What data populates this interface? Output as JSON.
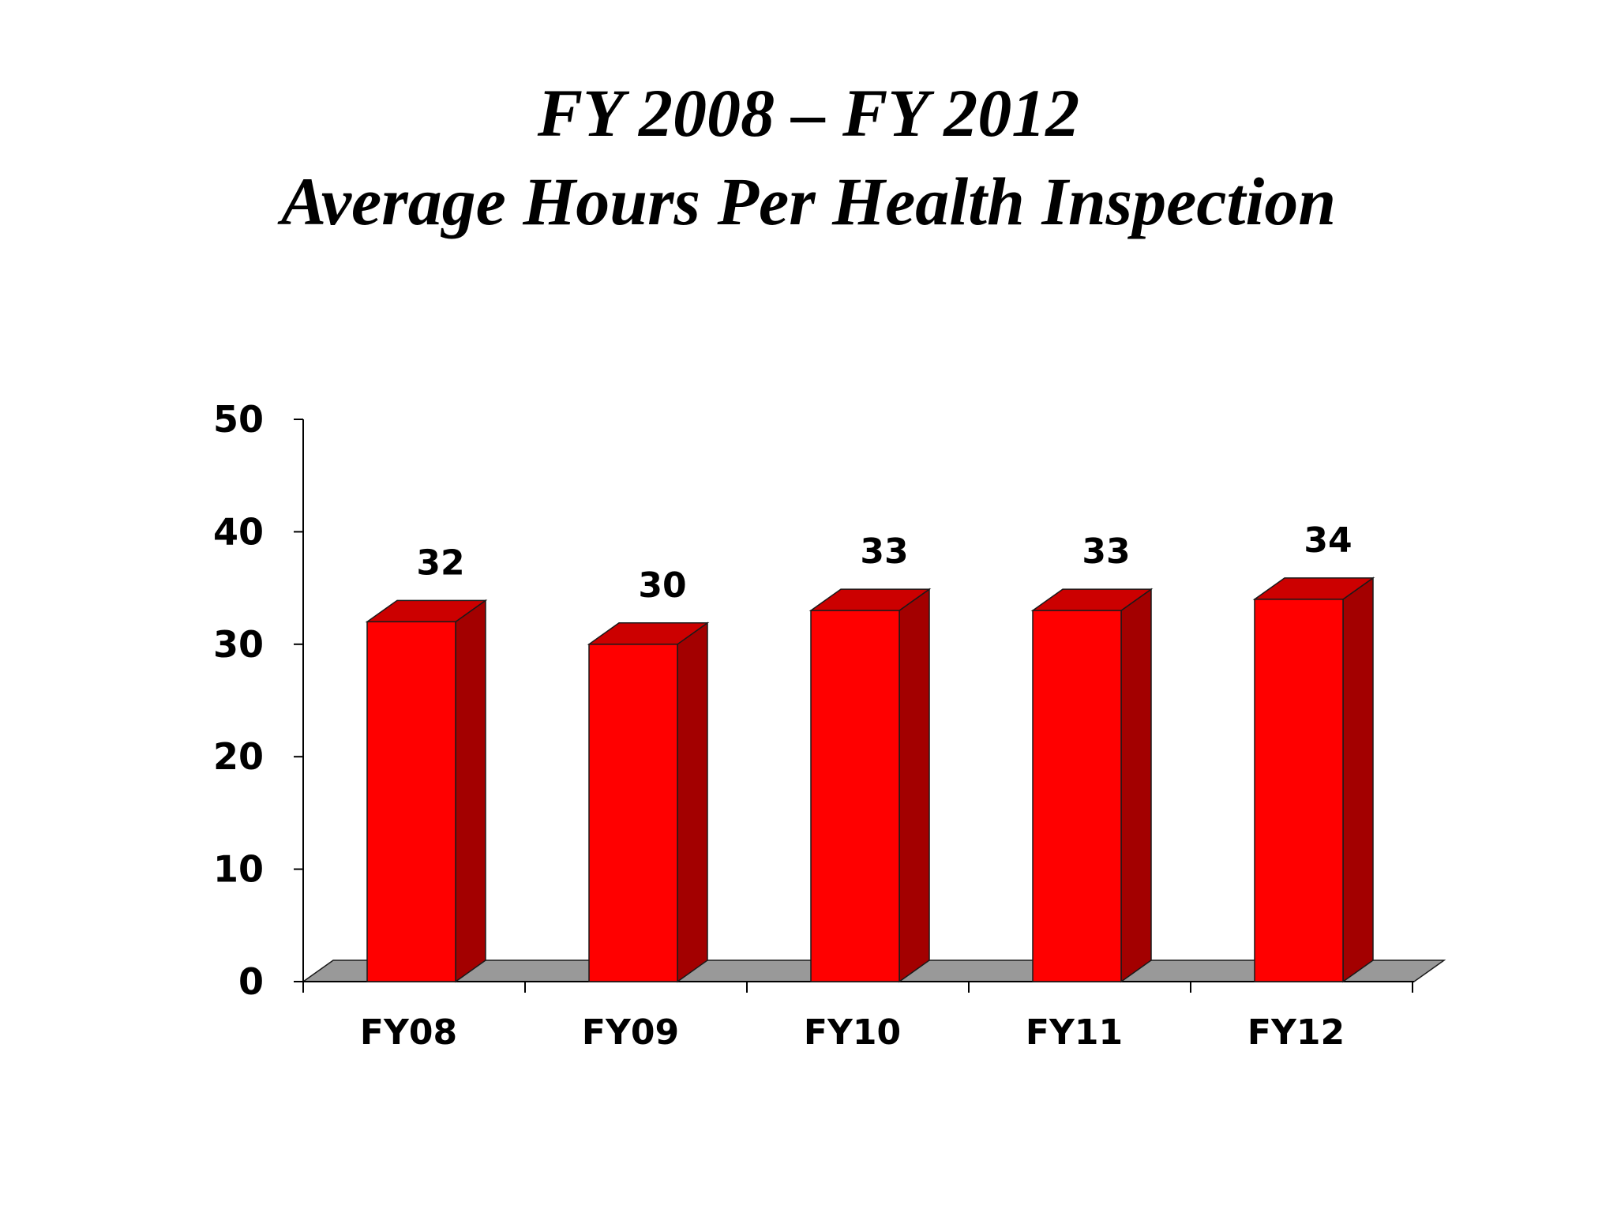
{
  "title": {
    "line1": "FY 2008 – FY 2012",
    "line2": "Average Hours Per Health Inspection"
  },
  "colors": {
    "bar_front": "#ff0000",
    "bar_top": "#cc0000",
    "bar_side": "#a30000",
    "floor": "#999999",
    "outline": "#1a1a1a"
  },
  "chart_data": {
    "type": "bar",
    "style": "3d",
    "categories": [
      "FY08",
      "FY09",
      "FY10",
      "FY11",
      "FY12"
    ],
    "values": [
      32,
      30,
      33,
      33,
      34
    ],
    "data_labels": [
      "32",
      "30",
      "33",
      "33",
      "34"
    ],
    "yticks": [
      0,
      10,
      20,
      30,
      40,
      50
    ],
    "ylim": [
      0,
      50
    ],
    "xlabel": "",
    "ylabel": "",
    "grid": false,
    "legend": "none"
  }
}
